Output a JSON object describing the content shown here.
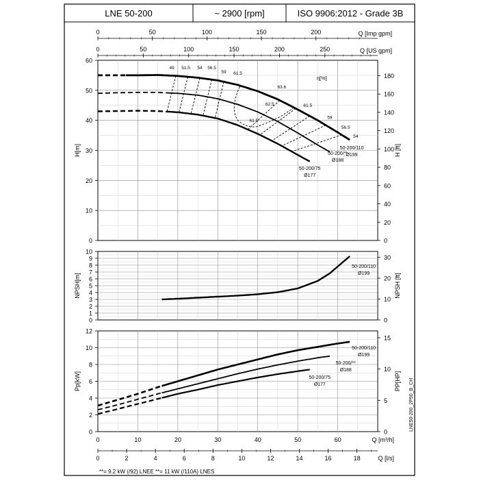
{
  "header": {
    "model": "LNE 50-200",
    "speed": "~ 2900 [rpm]",
    "standard": "ISO 9906:2012 - Grade 3B"
  },
  "code": "LNE50-200_2P50_B_CH",
  "footnote": "**= 9.2 kW (/92) LNEE   **= 11 kW (/110A) LNES",
  "top_axes": {
    "imp": {
      "label": "Q [Imp gpm]",
      "ticks": [
        0,
        50,
        100,
        150,
        200
      ]
    },
    "us": {
      "label": "Q [US gpm]",
      "ticks": [
        0,
        50,
        100,
        150,
        200,
        250
      ]
    }
  },
  "bottom_axes": {
    "m3h": {
      "label": "Q [m³/h]",
      "ticks": [
        0,
        10,
        20,
        30,
        40,
        50,
        60
      ]
    },
    "ls": {
      "label": "Q [l/s]",
      "ticks": [
        0,
        2,
        4,
        6,
        8,
        10,
        12,
        14,
        16,
        18
      ]
    }
  },
  "chart_data": [
    {
      "type": "line",
      "title": "",
      "xlabel": "Q [m³/h]",
      "ylabel": "H[m]",
      "ylabel_right": "H [ft]",
      "xlim": [
        0,
        70
      ],
      "ylim": [
        0,
        60
      ],
      "yticks": [
        0,
        10,
        20,
        30,
        40,
        50,
        60
      ],
      "yticks_right": [
        0,
        20,
        40,
        60,
        80,
        100,
        120,
        140,
        160,
        180
      ],
      "grid": true,
      "series": [
        {
          "name": "50-200/110 Ø199",
          "name_lines": [
            "50-200/110",
            "Ø199"
          ],
          "x": [
            0,
            5,
            10,
            15,
            20,
            25,
            30,
            35,
            40,
            45,
            50,
            55,
            60,
            63
          ],
          "y": [
            55,
            55,
            55,
            55.1,
            54.8,
            54.2,
            53.3,
            51.8,
            49.7,
            47,
            43.6,
            40,
            36,
            33.5
          ]
        },
        {
          "name": "50-200/** Ø188",
          "name_lines": [
            "50-200/**",
            "Ø188"
          ],
          "x": [
            0,
            5,
            10,
            15,
            20,
            25,
            30,
            35,
            40,
            45,
            50,
            55,
            58
          ],
          "y": [
            49,
            49.2,
            49.3,
            49.3,
            49,
            48.4,
            47.2,
            45.3,
            42.8,
            39.6,
            35.8,
            31.8,
            29.5
          ]
        },
        {
          "name": "50-200/75 Ø177",
          "name_lines": [
            "50-200/75",
            "Ø177"
          ],
          "x": [
            0,
            5,
            10,
            15,
            20,
            25,
            30,
            35,
            40,
            45,
            50,
            53
          ],
          "y": [
            43,
            43.1,
            43.2,
            43.1,
            42.7,
            41.9,
            40.6,
            38.4,
            35.5,
            32.2,
            28.5,
            26.3
          ]
        }
      ],
      "efficiency": {
        "label": "η[%]",
        "iso_labels": [
          "49",
          "51.5",
          "54",
          "56.5",
          "59",
          "61.5",
          "63.6",
          "62.5",
          "61.5",
          "61.5",
          "59",
          "56.5",
          "54"
        ]
      }
    },
    {
      "type": "line",
      "title": "",
      "xlabel": "Q [m³/h]",
      "ylabel": "NPSH[m]",
      "ylabel_right": "NPSH [ft]",
      "xlim": [
        0,
        70
      ],
      "ylim": [
        0,
        10
      ],
      "yticks": [
        0,
        1,
        2,
        3,
        4,
        5,
        6,
        7,
        8,
        9,
        10
      ],
      "yticks_right": [
        0,
        10,
        20,
        30
      ],
      "grid": true,
      "series": [
        {
          "name": "50-200/110 Ø199",
          "name_lines": [
            "50-200/110",
            "Ø199"
          ],
          "x": [
            16,
            20,
            25,
            30,
            35,
            40,
            45,
            50,
            55,
            58,
            60,
            62,
            63
          ],
          "y": [
            3.0,
            3.1,
            3.25,
            3.4,
            3.55,
            3.75,
            4.05,
            4.6,
            5.7,
            6.8,
            7.8,
            8.8,
            9.3
          ]
        }
      ]
    },
    {
      "type": "line",
      "title": "",
      "xlabel": "Q [m³/h]",
      "ylabel": "Pp[kW]",
      "ylabel_right": "PP[HP]",
      "xlim": [
        0,
        70
      ],
      "ylim": [
        0,
        12
      ],
      "yticks": [
        0,
        2,
        4,
        6,
        8,
        10,
        12
      ],
      "yticks_right": [
        0,
        5,
        10,
        15
      ],
      "grid": true,
      "series": [
        {
          "name": "50-200/110 Ø199",
          "name_lines": [
            "50-200/110",
            "Ø199"
          ],
          "x": [
            0,
            5,
            10,
            15,
            20,
            25,
            30,
            35,
            40,
            45,
            50,
            55,
            60,
            63
          ],
          "y": [
            3.1,
            3.8,
            4.5,
            5.3,
            6.0,
            6.7,
            7.4,
            8.0,
            8.6,
            9.2,
            9.7,
            10.1,
            10.5,
            10.7
          ]
        },
        {
          "name": "50-200/** Ø188",
          "name_lines": [
            "50-200/**",
            "Ø188"
          ],
          "x": [
            0,
            5,
            10,
            15,
            20,
            25,
            30,
            35,
            40,
            45,
            50,
            55,
            58
          ],
          "y": [
            2.6,
            3.2,
            3.85,
            4.5,
            5.1,
            5.7,
            6.3,
            6.9,
            7.45,
            7.95,
            8.4,
            8.8,
            9.0
          ]
        },
        {
          "name": "50-200/75 Ø177",
          "name_lines": [
            "50-200/75",
            "Ø177"
          ],
          "x": [
            0,
            5,
            10,
            15,
            20,
            25,
            30,
            35,
            40,
            45,
            50,
            53
          ],
          "y": [
            2.1,
            2.7,
            3.3,
            3.9,
            4.5,
            5.0,
            5.55,
            6.0,
            6.45,
            6.85,
            7.2,
            7.4
          ]
        }
      ]
    }
  ]
}
